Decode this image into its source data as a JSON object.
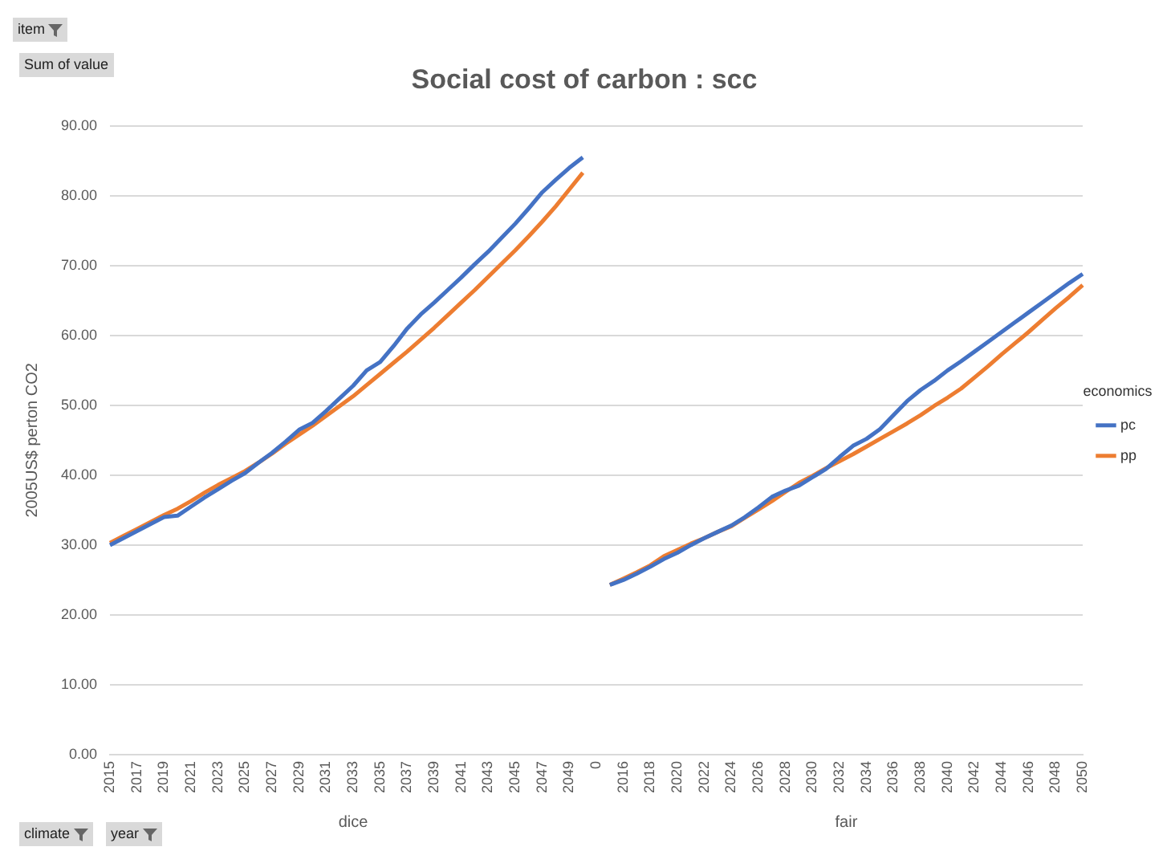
{
  "chart_data": {
    "type": "line",
    "title": "Social cost of carbon : scc",
    "ylabel": "2005US$ perton CO2",
    "legend_title": "economics",
    "annotations": [
      "item",
      "Sum of value",
      "dice",
      "fair",
      "climate",
      "year"
    ],
    "categories": [
      "2015",
      null,
      "2017",
      null,
      "2019",
      null,
      "2021",
      null,
      "2023",
      null,
      "2025",
      null,
      "2027",
      null,
      "2029",
      null,
      "2031",
      null,
      "2033",
      null,
      "2035",
      null,
      "2037",
      null,
      "2039",
      null,
      "2041",
      null,
      "2043",
      null,
      "2045",
      null,
      "2047",
      null,
      "2049",
      null,
      "0",
      null,
      "2016",
      null,
      "2018",
      null,
      "2020",
      null,
      "2022",
      null,
      "2024",
      null,
      "2026",
      null,
      "2028",
      null,
      "2030",
      null,
      "2032",
      null,
      "2034",
      null,
      "2036",
      null,
      "2038",
      null,
      "2040",
      null,
      "2042",
      null,
      "2044",
      null,
      "2046",
      null,
      "2048",
      null,
      "2050"
    ],
    "series": [
      {
        "name": "pc",
        "color": "#4472c4",
        "values": [
          30.0,
          31.0,
          32.0,
          33.0,
          34.0,
          34.2,
          35.5,
          36.8,
          38.0,
          39.2,
          40.3,
          41.8,
          43.2,
          44.8,
          46.5,
          47.5,
          49.2,
          51.0,
          52.8,
          55.0,
          56.2,
          58.5,
          61.0,
          63.0,
          64.7,
          66.5,
          68.3,
          70.2,
          72.0,
          74.0,
          76.0,
          78.2,
          80.5,
          82.3,
          84.0,
          85.5,
          null,
          24.3,
          25.0,
          25.9,
          26.9,
          28.0,
          28.9,
          30.0,
          31.0,
          31.9,
          32.8,
          34.0,
          35.4,
          36.9,
          37.8,
          38.5,
          39.7,
          40.9,
          42.6,
          44.2,
          45.2,
          46.6,
          48.6,
          50.6,
          52.2,
          53.5,
          55.0,
          56.3,
          57.7,
          59.1,
          60.5,
          61.9,
          63.3,
          64.7,
          66.1,
          67.5,
          68.8
        ]
      },
      {
        "name": "pp",
        "color": "#ed7d31",
        "values": [
          30.3,
          31.3,
          32.3,
          33.3,
          34.3,
          35.2,
          36.3,
          37.5,
          38.6,
          39.6,
          40.6,
          41.8,
          43.1,
          44.5,
          45.8,
          47.1,
          48.5,
          49.9,
          51.3,
          52.9,
          54.5,
          56.1,
          57.7,
          59.4,
          61.1,
          62.9,
          64.7,
          66.5,
          68.4,
          70.3,
          72.2,
          74.2,
          76.3,
          78.5,
          80.9,
          83.3,
          null,
          24.3,
          25.2,
          26.1,
          27.1,
          28.4,
          29.3,
          30.2,
          31.0,
          31.9,
          32.7,
          33.9,
          35.1,
          36.3,
          37.6,
          38.9,
          39.9,
          41.0,
          42.0,
          43.0,
          44.1,
          45.2,
          46.3,
          47.4,
          48.6,
          49.9,
          51.1,
          52.4,
          54.0,
          55.6,
          57.3,
          58.9,
          60.5,
          62.2,
          63.9,
          65.5,
          67.2
        ]
      }
    ],
    "ylim": [
      0,
      90
    ],
    "yticks": [
      {
        "value": 0,
        "label": "0.00"
      },
      {
        "value": 10,
        "label": "10.00"
      },
      {
        "value": 20,
        "label": "20.00"
      },
      {
        "value": 30,
        "label": "30.00"
      },
      {
        "value": 40,
        "label": "40.00"
      },
      {
        "value": 50,
        "label": "50.00"
      },
      {
        "value": 60,
        "label": "60.00"
      },
      {
        "value": 70,
        "label": "70.00"
      },
      {
        "value": 80,
        "label": "80.00"
      },
      {
        "value": 90,
        "label": "90.00"
      }
    ],
    "grid": "y",
    "legend": "right",
    "marker": "none",
    "line_style": "solid"
  }
}
